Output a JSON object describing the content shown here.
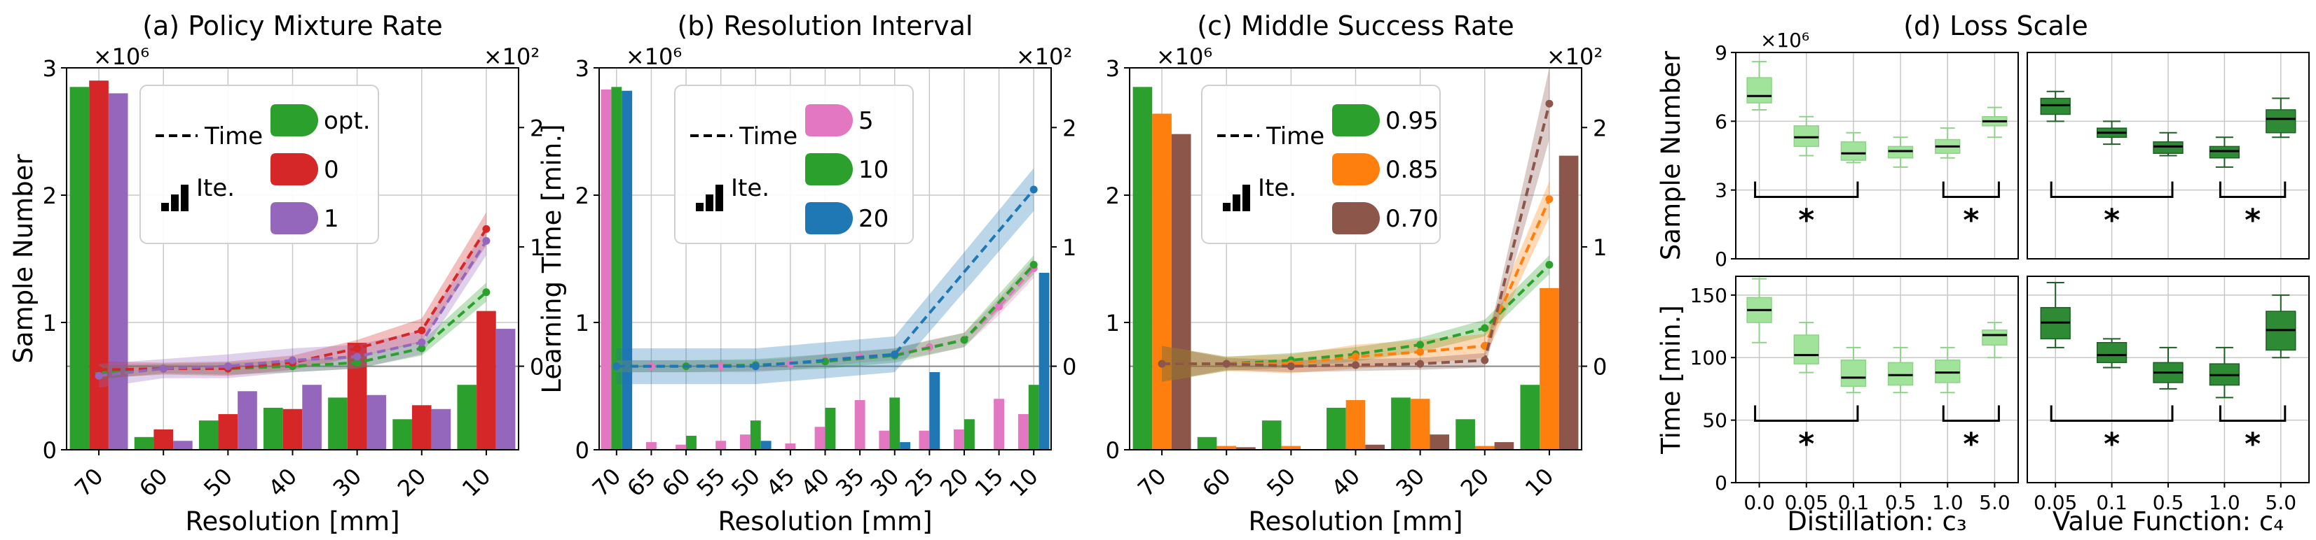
{
  "colors": {
    "green": "#2ca02c",
    "red": "#d62728",
    "purple": "#9467bd",
    "pink": "#e377c2",
    "blue": "#1f77b4",
    "orange": "#ff7f0e",
    "brown": "#8c564b",
    "light_green": "#a1e39a",
    "dark_green": "#2f8a36"
  },
  "common": {
    "sample_axis_label": "Sample Number",
    "time_axis_label": "Learning Time [min.]",
    "x_axis_label": "Resolution [mm]",
    "sample_multiplier": "×10⁶",
    "time_multiplier": "×10²",
    "legend_time": "Time",
    "legend_ite": "Ite."
  },
  "chart_data": [
    {
      "type": "bar+line",
      "title": "(a) Policy Mixture Rate",
      "xlabel": "Resolution [mm]",
      "ylabel": "Sample Number",
      "y2label": "Learning Time [min.]",
      "ylim": [
        0,
        3
      ],
      "y2lim": [
        -0.7,
        2.5
      ],
      "categories": [
        "70",
        "60",
        "50",
        "40",
        "30",
        "20",
        "10"
      ],
      "x_ticks": [
        "70",
        "60",
        "50",
        "40",
        "30",
        "20",
        "10"
      ],
      "legend": [
        "opt.",
        "0",
        "1"
      ],
      "series": [
        {
          "name": "opt.",
          "color": "#2ca02c",
          "samples": [
            2.85,
            0.1,
            0.23,
            0.33,
            0.41,
            0.24,
            0.51
          ],
          "time": [
            -0.05,
            -0.02,
            -0.02,
            0.0,
            0.03,
            0.15,
            0.62
          ],
          "band": [
            0.06,
            0.04,
            0.05,
            0.05,
            0.05,
            0.06,
            0.08
          ]
        },
        {
          "name": "0",
          "color": "#d62728",
          "samples": [
            2.9,
            0.16,
            0.28,
            0.32,
            0.84,
            0.35,
            1.09
          ],
          "time": [
            -0.03,
            -0.02,
            -0.02,
            0.03,
            0.15,
            0.3,
            1.15
          ],
          "band": [
            0.07,
            0.05,
            0.06,
            0.06,
            0.07,
            0.1,
            0.14
          ]
        },
        {
          "name": "1",
          "color": "#9467bd",
          "samples": [
            2.8,
            0.07,
            0.46,
            0.51,
            0.43,
            0.32,
            0.95
          ],
          "time": [
            -0.08,
            -0.02,
            0.0,
            0.05,
            0.08,
            0.2,
            1.05
          ],
          "band": [
            0.1,
            0.08,
            0.1,
            0.1,
            0.1,
            0.1,
            0.12
          ]
        }
      ]
    },
    {
      "type": "bar+line",
      "title": "(b) Resolution Interval",
      "xlabel": "Resolution [mm]",
      "ylabel": "Sample Number",
      "y2label": "Learning Time [min.]",
      "ylim": [
        0,
        3
      ],
      "y2lim": [
        -0.7,
        2.5
      ],
      "categories": [
        "70",
        "65",
        "60",
        "55",
        "50",
        "45",
        "40",
        "35",
        "30",
        "25",
        "20",
        "15",
        "10"
      ],
      "x_ticks": [
        "70",
        "65",
        "60",
        "55",
        "50",
        "45",
        "40",
        "35",
        "30",
        "25",
        "20",
        "15",
        "10"
      ],
      "legend": [
        "5",
        "10",
        "20"
      ],
      "series": [
        {
          "name": "5",
          "color": "#e377c2",
          "samples": [
            2.83,
            0.06,
            0.04,
            0.07,
            0.12,
            0.05,
            0.18,
            0.39,
            0.15,
            0.15,
            0.16,
            0.4,
            0.28
          ],
          "time": [
            0.0,
            0.0,
            0.0,
            0.0,
            0.0,
            0.02,
            0.05,
            0.08,
            0.1,
            0.16,
            0.22,
            0.5,
            0.82
          ],
          "band": [
            0.05,
            0.05,
            0.05,
            0.05,
            0.05,
            0.05,
            0.05,
            0.05,
            0.05,
            0.06,
            0.06,
            0.07,
            0.08
          ]
        },
        {
          "name": "10",
          "color": "#2ca02c",
          "samples": [
            2.85,
            null,
            0.11,
            null,
            0.23,
            null,
            0.33,
            null,
            0.41,
            null,
            0.24,
            null,
            0.51
          ],
          "time": [
            0.0,
            null,
            0.0,
            null,
            0.01,
            null,
            0.04,
            null,
            0.09,
            null,
            0.22,
            null,
            0.85
          ],
          "band": [
            0.05,
            null,
            0.05,
            null,
            0.05,
            null,
            0.06,
            null,
            0.06,
            null,
            0.06,
            null,
            0.08
          ]
        },
        {
          "name": "20",
          "color": "#1f77b4",
          "samples": [
            2.82,
            null,
            null,
            null,
            0.07,
            null,
            null,
            null,
            0.06,
            0.61,
            null,
            null,
            1.39
          ],
          "time": [
            0.0,
            null,
            null,
            null,
            0.0,
            null,
            null,
            null,
            0.1,
            null,
            null,
            null,
            1.48
          ],
          "band": [
            0.15,
            null,
            null,
            null,
            0.15,
            null,
            null,
            null,
            0.15,
            null,
            null,
            null,
            0.18
          ]
        }
      ]
    },
    {
      "type": "bar+line",
      "title": "(c) Middle Success Rate",
      "xlabel": "Resolution [mm]",
      "ylabel": "Sample Number",
      "y2label": "Learning Time [min.]",
      "ylim": [
        0,
        3
      ],
      "y2lim": [
        -0.7,
        2.5
      ],
      "categories": [
        "70",
        "60",
        "50",
        "40",
        "30",
        "20",
        "10"
      ],
      "x_ticks": [
        "70",
        "60",
        "50",
        "40",
        "30",
        "20",
        "10"
      ],
      "legend": [
        "0.95",
        "0.85",
        "0.70"
      ],
      "series": [
        {
          "name": "0.95",
          "color": "#2ca02c",
          "samples": [
            2.85,
            0.1,
            0.23,
            0.33,
            0.41,
            0.24,
            0.51
          ],
          "time": [
            0.02,
            0.02,
            0.05,
            0.1,
            0.18,
            0.32,
            0.85
          ],
          "band": [
            0.15,
            0.06,
            0.06,
            0.06,
            0.06,
            0.07,
            0.08
          ]
        },
        {
          "name": "0.85",
          "color": "#ff7f0e",
          "samples": [
            2.64,
            0.03,
            0.03,
            0.39,
            0.4,
            0.03,
            1.27
          ],
          "time": [
            0.02,
            0.02,
            0.02,
            0.08,
            0.12,
            0.17,
            1.4
          ],
          "band": [
            0.15,
            0.06,
            0.08,
            0.1,
            0.1,
            0.1,
            0.15
          ]
        },
        {
          "name": "0.70",
          "color": "#8c564b",
          "samples": [
            2.48,
            0.02,
            0.0,
            0.04,
            0.12,
            0.06,
            2.31
          ],
          "time": [
            0.02,
            0.02,
            0.0,
            0.01,
            0.02,
            0.05,
            2.2
          ],
          "band": [
            0.15,
            0.05,
            0.05,
            0.05,
            0.05,
            0.06,
            0.3
          ]
        }
      ]
    },
    {
      "type": "box",
      "title": "(d) Loss Scale",
      "panels": [
        {
          "name": "distillation-samples",
          "ylabel": "Sample Number",
          "multiplier": "×10⁶",
          "ylim": [
            0,
            9
          ],
          "yticks": [
            "0",
            "3",
            "6",
            "9"
          ],
          "xlabel": "Distillation: c₃",
          "categories": [
            "0.0",
            "0.05",
            "0.1",
            "0.5",
            "1.0",
            "5.0"
          ],
          "color": "#a1e39a",
          "boxes": [
            [
              6.5,
              6.8,
              7.1,
              7.9,
              8.6
            ],
            [
              4.5,
              4.9,
              5.3,
              5.8,
              6.2
            ],
            [
              4.2,
              4.3,
              4.6,
              5.1,
              5.5
            ],
            [
              4.0,
              4.4,
              4.7,
              4.9,
              5.3
            ],
            [
              4.4,
              4.6,
              4.9,
              5.2,
              5.7
            ],
            [
              5.3,
              5.8,
              6.0,
              6.2,
              6.6
            ]
          ],
          "stars": [
            "*",
            "*"
          ]
        },
        {
          "name": "value-samples",
          "ylabel": "",
          "multiplier": "",
          "ylim": [
            0,
            9
          ],
          "yticks": [],
          "xlabel": "Value Function: c₄",
          "categories": [
            "0.05",
            "0.1",
            "0.5",
            "1.0",
            "5.0"
          ],
          "color": "#2f8a36",
          "boxes": [
            [
              6.0,
              6.3,
              6.7,
              7.0,
              7.3
            ],
            [
              5.0,
              5.3,
              5.5,
              5.7,
              6.0
            ],
            [
              4.5,
              4.6,
              4.9,
              5.1,
              5.5
            ],
            [
              4.0,
              4.4,
              4.7,
              4.9,
              5.3
            ],
            [
              5.3,
              5.5,
              6.1,
              6.5,
              7.0
            ]
          ],
          "stars": [
            "*",
            "*"
          ]
        },
        {
          "name": "distillation-time",
          "ylabel": "Time [min.]",
          "multiplier": "",
          "ylim": [
            0,
            165
          ],
          "yticks": [
            "0",
            "50",
            "100",
            "150"
          ],
          "xlabel": "Distillation: c₃",
          "categories": [
            "0.0",
            "0.05",
            "0.1",
            "0.5",
            "1.0",
            "5.0"
          ],
          "color": "#a1e39a",
          "boxes": [
            [
              112,
              128,
              138,
              148,
              163
            ],
            [
              88,
              95,
              102,
              118,
              128
            ],
            [
              72,
              77,
              84,
              98,
              108
            ],
            [
              72,
              78,
              86,
              96,
              108
            ],
            [
              72,
              80,
              88,
              98,
              108
            ],
            [
              100,
              110,
              118,
              122,
              128
            ]
          ],
          "stars": [
            "*",
            "*"
          ]
        },
        {
          "name": "value-time",
          "ylabel": "",
          "multiplier": "",
          "ylim": [
            0,
            165
          ],
          "yticks": [],
          "xlabel": "Value Function: c₄",
          "categories": [
            "0.05",
            "0.1",
            "0.5",
            "1.0",
            "5.0"
          ],
          "color": "#2f8a36",
          "boxes": [
            [
              108,
              115,
              128,
              140,
              160
            ],
            [
              92,
              96,
              102,
              112,
              115
            ],
            [
              75,
              80,
              88,
              96,
              108
            ],
            [
              68,
              78,
              86,
              95,
              108
            ],
            [
              100,
              106,
              122,
              137,
              150
            ]
          ],
          "stars": [
            "*",
            "*"
          ]
        }
      ]
    }
  ]
}
